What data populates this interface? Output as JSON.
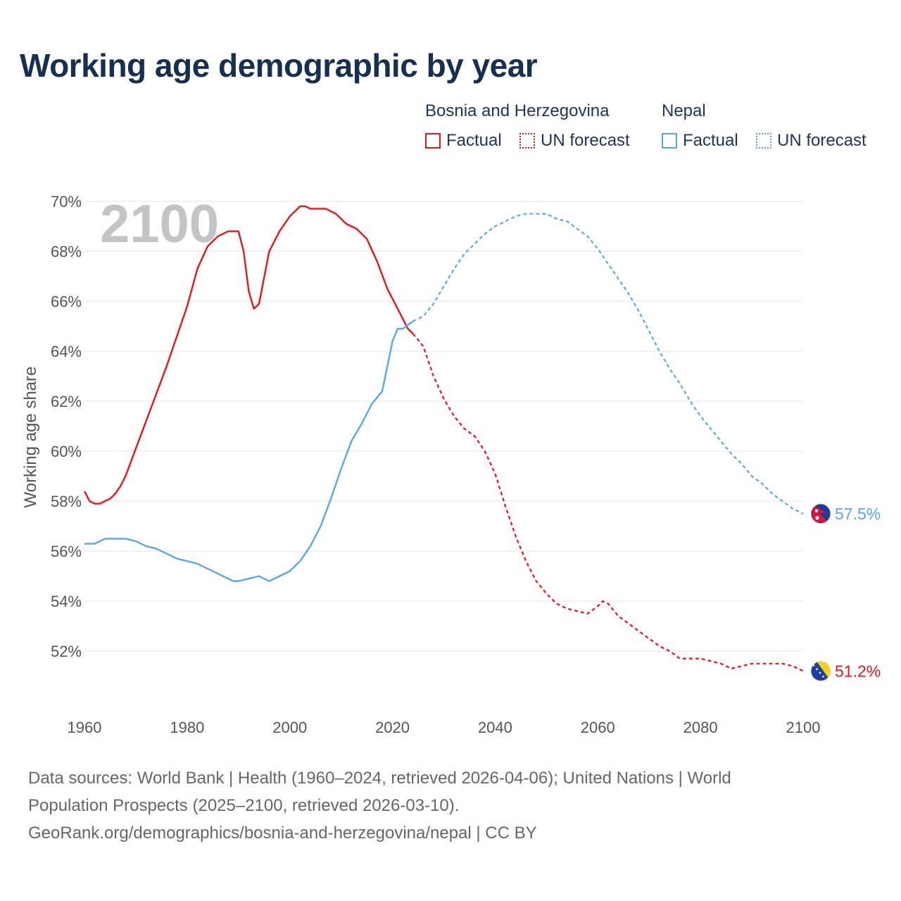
{
  "title": "Working age demographic by year",
  "legend": {
    "groups": [
      {
        "name": "Bosnia and Herzegovina",
        "color": "#e8141c",
        "factual_label": "Factual",
        "forecast_label": "UN forecast"
      },
      {
        "name": "Nepal",
        "color": "#5ba6e6",
        "factual_label": "Factual",
        "forecast_label": "UN forecast"
      }
    ]
  },
  "footer": {
    "line1": "Data sources: World Bank | Health (1960–2024, retrieved 2026-04-06); United Nations | World",
    "line2": "Population Prospects (2025–2100, retrieved 2026-03-10).",
    "line3": "GeoRank.org/demographics/bosnia-and-herzegovina/nepal | CC BY"
  },
  "chart_data": {
    "type": "line",
    "title": "Working age demographic by year",
    "current_year_label": "2100",
    "xlabel": "",
    "ylabel": "Working age share",
    "xlim": [
      1960,
      2100
    ],
    "ylim": [
      50,
      70
    ],
    "x_ticks": [
      "1960",
      "1980",
      "2000",
      "2020",
      "2040",
      "2060",
      "2080",
      "2100"
    ],
    "y_ticks": [
      "52%",
      "54%",
      "56%",
      "58%",
      "60%",
      "62%",
      "64%",
      "66%",
      "68%",
      "70%"
    ],
    "factual_end_year": 2024,
    "series": [
      {
        "name": "Bosnia and Herzegovina",
        "color": "#e8141c",
        "end_label": "51.2%",
        "flag": "bosnia-flag",
        "points": [
          [
            1960,
            58.4
          ],
          [
            1961,
            58.0
          ],
          [
            1962,
            57.9
          ],
          [
            1963,
            57.9
          ],
          [
            1964,
            58.0
          ],
          [
            1965,
            58.1
          ],
          [
            1966,
            58.3
          ],
          [
            1967,
            58.6
          ],
          [
            1968,
            59.0
          ],
          [
            1970,
            60.1
          ],
          [
            1972,
            61.2
          ],
          [
            1974,
            62.3
          ],
          [
            1976,
            63.4
          ],
          [
            1978,
            64.6
          ],
          [
            1980,
            65.8
          ],
          [
            1982,
            67.3
          ],
          [
            1984,
            68.2
          ],
          [
            1986,
            68.6
          ],
          [
            1988,
            68.8
          ],
          [
            1989,
            68.8
          ],
          [
            1990,
            68.8
          ],
          [
            1991,
            68.0
          ],
          [
            1992,
            66.4
          ],
          [
            1993,
            65.7
          ],
          [
            1994,
            65.9
          ],
          [
            1996,
            68.0
          ],
          [
            1998,
            68.8
          ],
          [
            2000,
            69.4
          ],
          [
            2002,
            69.8
          ],
          [
            2003,
            69.8
          ],
          [
            2004,
            69.7
          ],
          [
            2006,
            69.7
          ],
          [
            2007,
            69.7
          ],
          [
            2009,
            69.5
          ],
          [
            2011,
            69.1
          ],
          [
            2013,
            68.9
          ],
          [
            2015,
            68.5
          ],
          [
            2017,
            67.6
          ],
          [
            2019,
            66.5
          ],
          [
            2021,
            65.7
          ],
          [
            2023,
            64.9
          ],
          [
            2024,
            64.7
          ],
          [
            2026,
            64.2
          ],
          [
            2028,
            63.0
          ],
          [
            2030,
            62.1
          ],
          [
            2032,
            61.4
          ],
          [
            2034,
            60.9
          ],
          [
            2036,
            60.6
          ],
          [
            2038,
            60.0
          ],
          [
            2040,
            59.1
          ],
          [
            2042,
            57.8
          ],
          [
            2044,
            56.6
          ],
          [
            2046,
            55.6
          ],
          [
            2048,
            54.8
          ],
          [
            2050,
            54.3
          ],
          [
            2052,
            53.9
          ],
          [
            2054,
            53.7
          ],
          [
            2056,
            53.6
          ],
          [
            2058,
            53.5
          ],
          [
            2060,
            53.8
          ],
          [
            2061,
            54.0
          ],
          [
            2062,
            53.9
          ],
          [
            2064,
            53.4
          ],
          [
            2066,
            53.1
          ],
          [
            2068,
            52.8
          ],
          [
            2070,
            52.5
          ],
          [
            2072,
            52.2
          ],
          [
            2074,
            52.0
          ],
          [
            2076,
            51.7
          ],
          [
            2080,
            51.7
          ],
          [
            2082,
            51.6
          ],
          [
            2084,
            51.5
          ],
          [
            2086,
            51.3
          ],
          [
            2088,
            51.4
          ],
          [
            2090,
            51.5
          ],
          [
            2093,
            51.5
          ],
          [
            2096,
            51.5
          ],
          [
            2098,
            51.4
          ],
          [
            2100,
            51.2
          ]
        ]
      },
      {
        "name": "Nepal",
        "color": "#5ba6e6",
        "end_label": "57.5%",
        "flag": "nepal-flag",
        "points": [
          [
            1960,
            56.3
          ],
          [
            1962,
            56.3
          ],
          [
            1964,
            56.5
          ],
          [
            1966,
            56.5
          ],
          [
            1968,
            56.5
          ],
          [
            1970,
            56.4
          ],
          [
            1972,
            56.2
          ],
          [
            1974,
            56.1
          ],
          [
            1976,
            55.9
          ],
          [
            1978,
            55.7
          ],
          [
            1980,
            55.6
          ],
          [
            1982,
            55.5
          ],
          [
            1984,
            55.3
          ],
          [
            1986,
            55.1
          ],
          [
            1988,
            54.9
          ],
          [
            1989,
            54.8
          ],
          [
            1990,
            54.8
          ],
          [
            1992,
            54.9
          ],
          [
            1994,
            55.0
          ],
          [
            1996,
            54.8
          ],
          [
            1998,
            55.0
          ],
          [
            2000,
            55.2
          ],
          [
            2002,
            55.6
          ],
          [
            2004,
            56.2
          ],
          [
            2006,
            57.0
          ],
          [
            2008,
            58.1
          ],
          [
            2010,
            59.3
          ],
          [
            2012,
            60.4
          ],
          [
            2014,
            61.1
          ],
          [
            2016,
            61.9
          ],
          [
            2018,
            62.4
          ],
          [
            2020,
            64.4
          ],
          [
            2021,
            64.9
          ],
          [
            2022,
            64.9
          ],
          [
            2024,
            65.2
          ],
          [
            2026,
            65.4
          ],
          [
            2028,
            65.9
          ],
          [
            2030,
            66.6
          ],
          [
            2032,
            67.3
          ],
          [
            2034,
            67.9
          ],
          [
            2036,
            68.3
          ],
          [
            2038,
            68.7
          ],
          [
            2040,
            69.0
          ],
          [
            2042,
            69.2
          ],
          [
            2044,
            69.4
          ],
          [
            2046,
            69.5
          ],
          [
            2048,
            69.5
          ],
          [
            2050,
            69.5
          ],
          [
            2052,
            69.3
          ],
          [
            2054,
            69.2
          ],
          [
            2056,
            68.9
          ],
          [
            2058,
            68.6
          ],
          [
            2060,
            68.1
          ],
          [
            2062,
            67.5
          ],
          [
            2064,
            66.9
          ],
          [
            2066,
            66.3
          ],
          [
            2068,
            65.6
          ],
          [
            2070,
            64.8
          ],
          [
            2072,
            64.0
          ],
          [
            2074,
            63.3
          ],
          [
            2076,
            62.7
          ],
          [
            2078,
            62.0
          ],
          [
            2080,
            61.4
          ],
          [
            2082,
            60.9
          ],
          [
            2084,
            60.4
          ],
          [
            2086,
            59.9
          ],
          [
            2088,
            59.5
          ],
          [
            2090,
            59.0
          ],
          [
            2092,
            58.7
          ],
          [
            2094,
            58.3
          ],
          [
            2096,
            58.0
          ],
          [
            2098,
            57.7
          ],
          [
            2100,
            57.5
          ]
        ]
      }
    ]
  }
}
